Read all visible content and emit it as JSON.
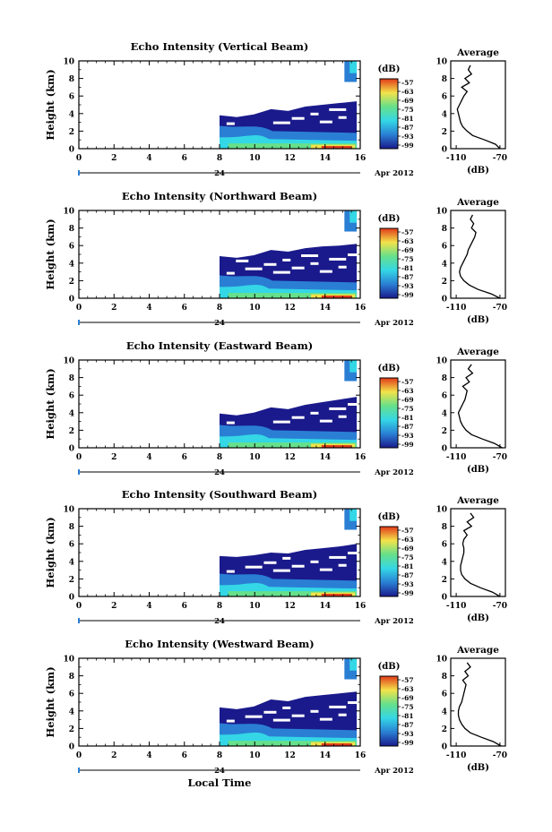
{
  "figure": {
    "xlabel_bottom": "Local Time",
    "date_label": "Apr 2012",
    "day_label": "24"
  },
  "colors": {
    "low": "#1a1a8c",
    "mid": "#2a7fd4",
    "cyan": "#34d7e6",
    "green": "#66e08a",
    "yellow": "#f3e34a",
    "red": "#e23a1a"
  },
  "chart_data": [
    {
      "type": "heatmap",
      "title": "Echo Intensity (Vertical Beam)",
      "ylabel": "Height (km)",
      "x_ticks": [
        "0",
        "2",
        "4",
        "6",
        "8",
        "10",
        "12",
        "14",
        "16"
      ],
      "y_ticks": [
        "0",
        "2",
        "4",
        "6",
        "8",
        "10"
      ],
      "xlim": [
        0,
        16
      ],
      "ylim": [
        0,
        10
      ],
      "colorbar": {
        "label": "(dB)",
        "ticks": [
          "-57",
          "-63",
          "-69",
          "-75",
          "-81",
          "-87",
          "-93",
          "-99"
        ]
      },
      "data_start_hour": 8,
      "echo_top_km": [
        3.8,
        3.6,
        3.9,
        4.5,
        4.3,
        4.8,
        5.0,
        5.2,
        5.4
      ],
      "side_profile": {
        "title": "Average",
        "x_ticks": [
          "-110",
          "-70"
        ],
        "xlabel": "(dB)",
        "xlim": [
          -115,
          -65
        ],
        "height_km": [
          0,
          0.5,
          1,
          1.5,
          2,
          2.5,
          3,
          3.5,
          4,
          4.5,
          5,
          5.5,
          6,
          6.5,
          7,
          7.5,
          8,
          8.5,
          9,
          9.5
        ],
        "intensity_db": [
          -70,
          -74,
          -84,
          -95,
          -100,
          -104,
          -106,
          -107,
          -108,
          -109,
          -107,
          -105,
          -103,
          -100,
          -105,
          -98,
          -102,
          -96,
          -99,
          -97
        ]
      }
    },
    {
      "type": "heatmap",
      "title": "Echo Intensity (Northward Beam)",
      "ylabel": "Height (km)",
      "x_ticks": [
        "0",
        "2",
        "4",
        "6",
        "8",
        "10",
        "12",
        "14",
        "16"
      ],
      "y_ticks": [
        "0",
        "2",
        "4",
        "6",
        "8",
        "10"
      ],
      "xlim": [
        0,
        16
      ],
      "ylim": [
        0,
        10
      ],
      "colorbar": {
        "label": "(dB)",
        "ticks": [
          "-57",
          "-63",
          "-69",
          "-75",
          "-81",
          "-87",
          "-93",
          "-99"
        ]
      },
      "data_start_hour": 8,
      "echo_top_km": [
        4.8,
        4.6,
        4.9,
        5.5,
        5.3,
        5.7,
        5.9,
        6.0,
        6.2
      ],
      "side_profile": {
        "title": "Average",
        "x_ticks": [
          "-110",
          "-70"
        ],
        "xlabel": "(dB)",
        "xlim": [
          -115,
          -65
        ],
        "height_km": [
          0,
          0.5,
          1,
          1.5,
          2,
          2.5,
          3,
          3.5,
          4,
          4.5,
          5,
          5.5,
          6,
          6.5,
          7,
          7.5,
          8,
          8.5,
          9,
          9.5
        ],
        "intensity_db": [
          -70,
          -78,
          -90,
          -98,
          -103,
          -106,
          -107,
          -106,
          -104,
          -102,
          -100,
          -99,
          -97,
          -95,
          -93,
          -92,
          -96,
          -94,
          -97,
          -95
        ]
      }
    },
    {
      "type": "heatmap",
      "title": "Echo Intensity (Eastward Beam)",
      "ylabel": "Height (km)",
      "x_ticks": [
        "0",
        "2",
        "4",
        "6",
        "8",
        "10",
        "12",
        "14",
        "16"
      ],
      "y_ticks": [
        "0",
        "2",
        "4",
        "6",
        "8",
        "10"
      ],
      "xlim": [
        0,
        16
      ],
      "ylim": [
        0,
        10
      ],
      "colorbar": {
        "label": "(dB)",
        "ticks": [
          "-57",
          "-63",
          "-69",
          "-75",
          "-81",
          "-87",
          "-93",
          "-99"
        ]
      },
      "data_start_hour": 8,
      "echo_top_km": [
        3.9,
        3.7,
        4.0,
        4.6,
        4.4,
        4.9,
        5.2,
        5.5,
        5.8
      ],
      "side_profile": {
        "title": "Average",
        "x_ticks": [
          "-110",
          "-70"
        ],
        "xlabel": "(dB)",
        "xlim": [
          -115,
          -65
        ],
        "height_km": [
          0,
          0.5,
          1,
          1.5,
          2,
          2.5,
          3,
          3.5,
          4,
          4.5,
          5,
          5.5,
          6,
          6.5,
          7,
          7.5,
          8,
          8.5,
          9,
          9.5
        ],
        "intensity_db": [
          -68,
          -75,
          -86,
          -96,
          -101,
          -104,
          -106,
          -107,
          -108,
          -106,
          -104,
          -102,
          -101,
          -100,
          -104,
          -98,
          -101,
          -95,
          -99,
          -96
        ]
      }
    },
    {
      "type": "heatmap",
      "title": "Echo Intensity (Southward Beam)",
      "ylabel": "Height (km)",
      "x_ticks": [
        "0",
        "2",
        "4",
        "6",
        "8",
        "10",
        "12",
        "14",
        "16"
      ],
      "y_ticks": [
        "0",
        "2",
        "4",
        "6",
        "8",
        "10"
      ],
      "xlim": [
        0,
        16
      ],
      "ylim": [
        0,
        10
      ],
      "colorbar": {
        "label": "(dB)",
        "ticks": [
          "-57",
          "-63",
          "-69",
          "-75",
          "-81",
          "-87",
          "-93",
          "-99"
        ]
      },
      "data_start_hour": 8,
      "echo_top_km": [
        4.6,
        4.5,
        4.7,
        5.0,
        4.9,
        5.3,
        5.5,
        5.7,
        6.0
      ],
      "side_profile": {
        "title": "Average",
        "x_ticks": [
          "-110",
          "-70"
        ],
        "xlabel": "(dB)",
        "xlim": [
          -115,
          -65
        ],
        "height_km": [
          0,
          0.5,
          1,
          1.5,
          2,
          2.5,
          3,
          3.5,
          4,
          4.5,
          5,
          5.5,
          6,
          6.5,
          7,
          7.5,
          8,
          8.5,
          9,
          9.5
        ],
        "intensity_db": [
          -70,
          -77,
          -88,
          -97,
          -102,
          -105,
          -106,
          -106,
          -105,
          -104,
          -103,
          -103,
          -104,
          -103,
          -100,
          -103,
          -96,
          -100,
          -94,
          -97
        ]
      }
    },
    {
      "type": "heatmap",
      "title": "Echo Intensity (Westward Beam)",
      "ylabel": "Height (km)",
      "x_ticks": [
        "0",
        "2",
        "4",
        "6",
        "8",
        "10",
        "12",
        "14",
        "16"
      ],
      "y_ticks": [
        "0",
        "2",
        "4",
        "6",
        "8",
        "10"
      ],
      "xlim": [
        0,
        16
      ],
      "ylim": [
        0,
        10
      ],
      "colorbar": {
        "label": "(dB)",
        "ticks": [
          "-57",
          "-63",
          "-69",
          "-75",
          "-81",
          "-87",
          "-93",
          "-99"
        ]
      },
      "data_start_hour": 8,
      "echo_top_km": [
        4.4,
        4.2,
        4.5,
        5.3,
        5.1,
        5.6,
        5.8,
        6.0,
        6.2
      ],
      "side_profile": {
        "title": "Average",
        "x_ticks": [
          "-110",
          "-70"
        ],
        "xlabel": "(dB)",
        "xlim": [
          -115,
          -65
        ],
        "height_km": [
          0,
          0.5,
          1,
          1.5,
          2,
          2.5,
          3,
          3.5,
          4,
          4.5,
          5,
          5.5,
          6,
          6.5,
          7,
          7.5,
          8,
          8.5,
          9,
          9.5
        ],
        "intensity_db": [
          -69,
          -76,
          -87,
          -97,
          -102,
          -105,
          -107,
          -108,
          -108,
          -107,
          -105,
          -104,
          -103,
          -102,
          -101,
          -104,
          -99,
          -102,
          -97,
          -100
        ]
      }
    }
  ]
}
